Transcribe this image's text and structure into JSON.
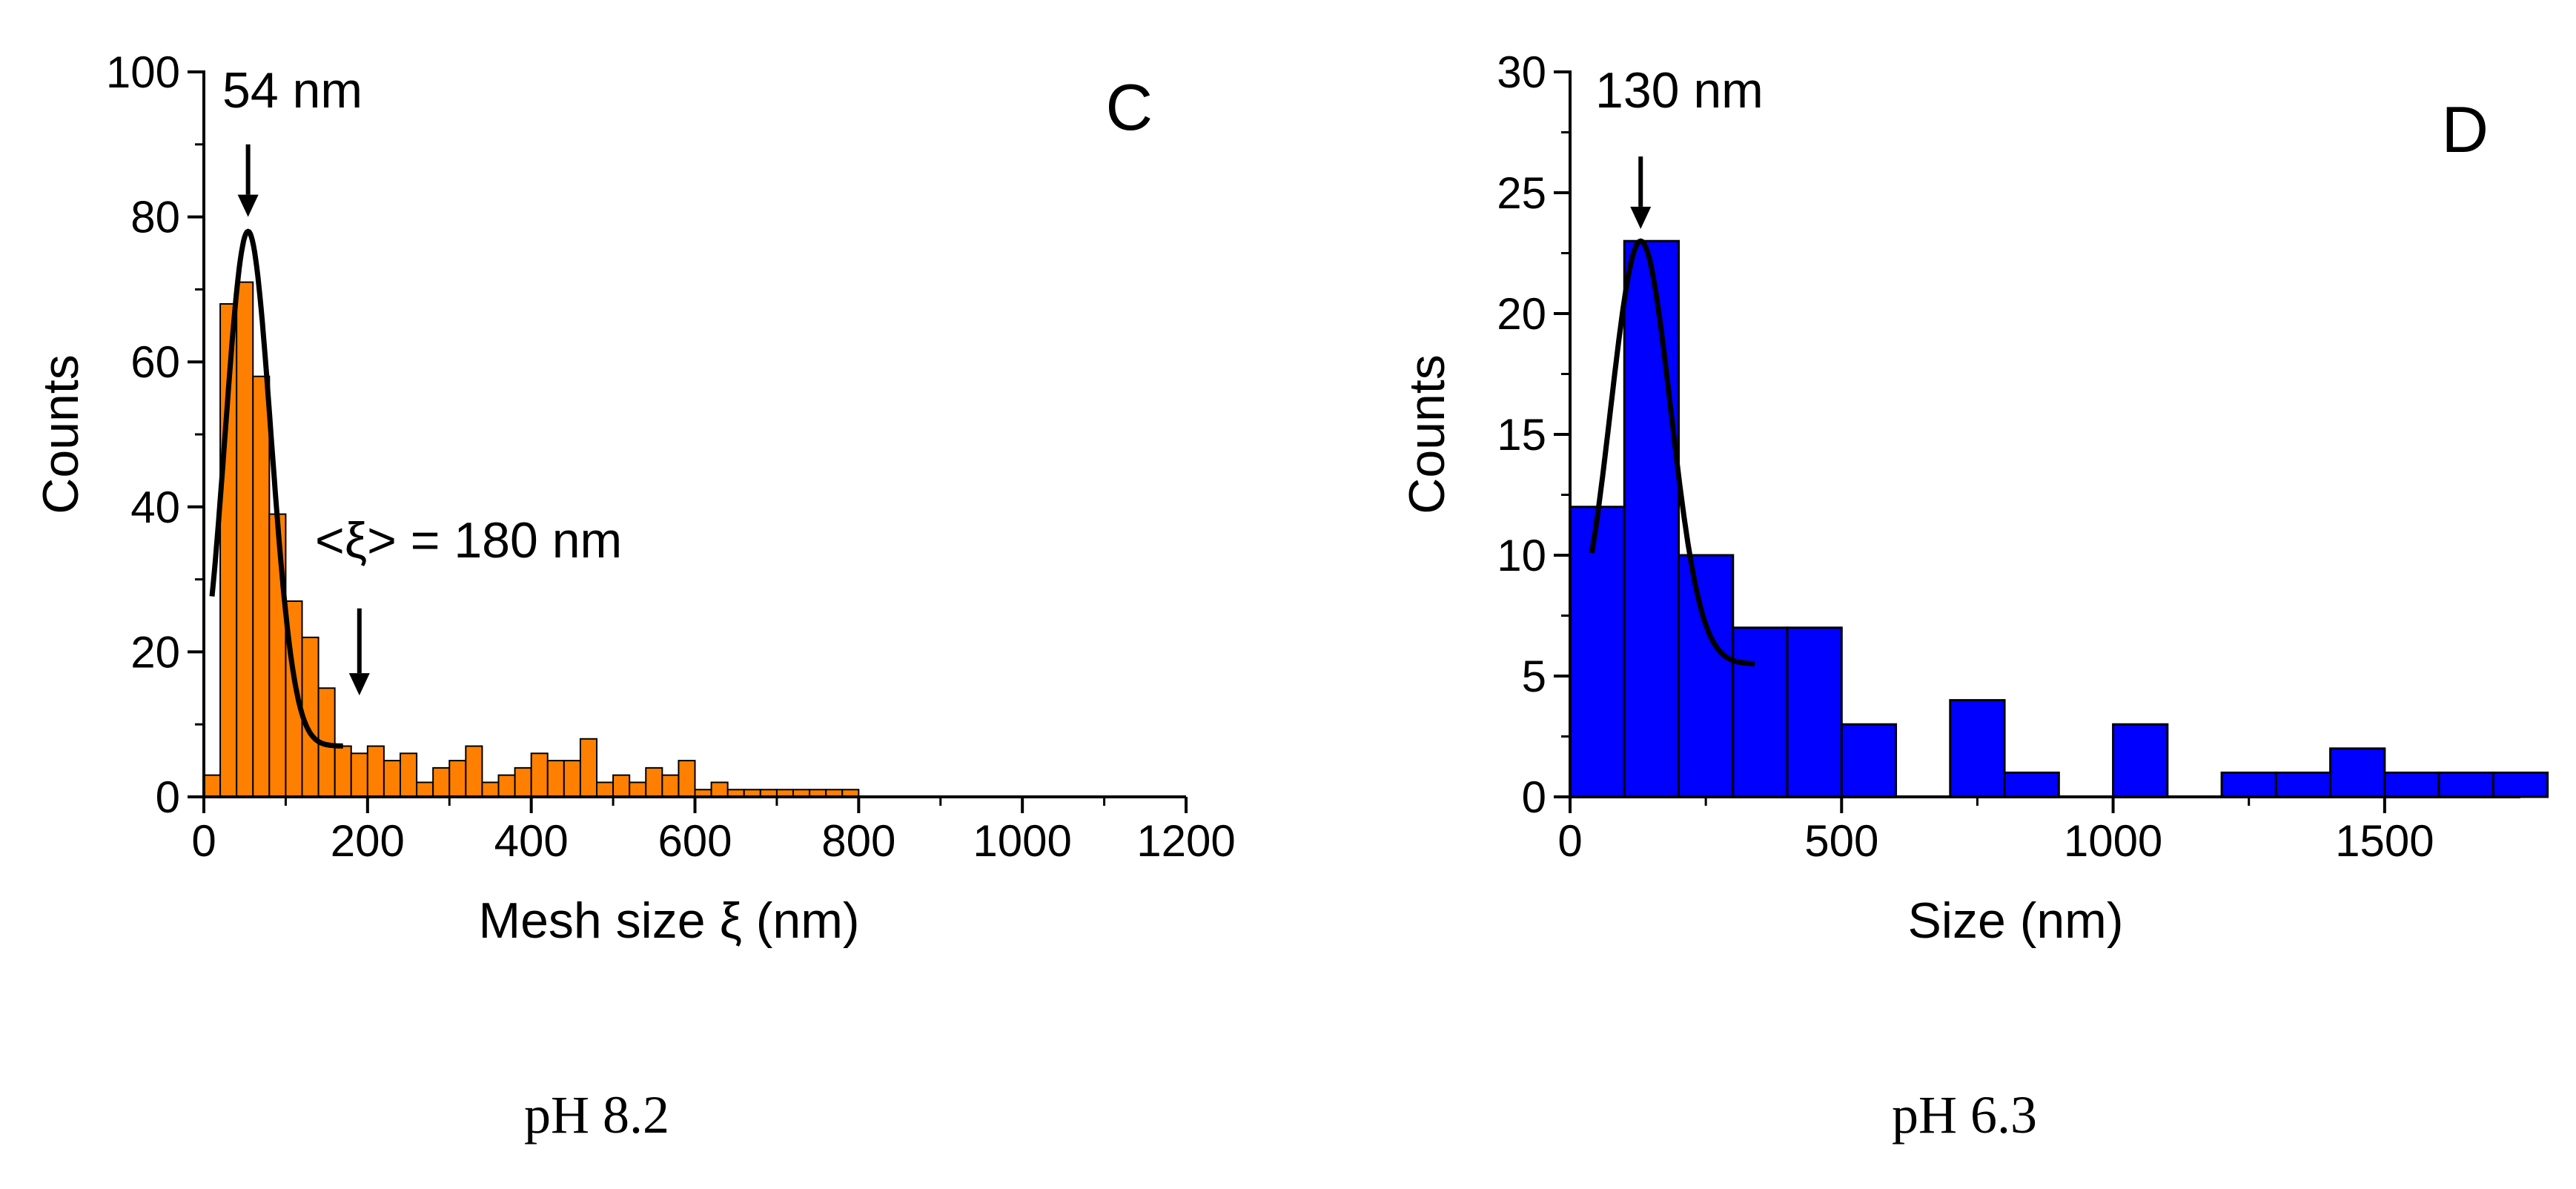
{
  "colors": {
    "orange_bar": "#ff8000",
    "blue_bar": "#0000ff",
    "edge": "#000000",
    "fit": "#000000",
    "background": "#ffffff"
  },
  "chart_data": [
    {
      "type": "bar",
      "panel_label": "C",
      "caption": "pH 8.2",
      "xlabel": "Mesh size ξ (nm)",
      "ylabel": "Counts",
      "xlim": [
        0,
        1200
      ],
      "ylim": [
        0,
        100
      ],
      "xticks": [
        "0",
        "200",
        "400",
        "600",
        "800",
        "1000",
        "1200"
      ],
      "yticks": [
        "0",
        "20",
        "40",
        "60",
        "80",
        "100"
      ],
      "bin_width": 20,
      "bins": [
        [
          0,
          3
        ],
        [
          20,
          68
        ],
        [
          40,
          71
        ],
        [
          60,
          58
        ],
        [
          80,
          39
        ],
        [
          100,
          27
        ],
        [
          120,
          22
        ],
        [
          140,
          15
        ],
        [
          160,
          7
        ],
        [
          180,
          6
        ],
        [
          200,
          7
        ],
        [
          220,
          5
        ],
        [
          240,
          6
        ],
        [
          260,
          2
        ],
        [
          280,
          4
        ],
        [
          300,
          5
        ],
        [
          320,
          7
        ],
        [
          340,
          2
        ],
        [
          360,
          3
        ],
        [
          380,
          4
        ],
        [
          400,
          6
        ],
        [
          420,
          5
        ],
        [
          440,
          5
        ],
        [
          460,
          8
        ],
        [
          480,
          2
        ],
        [
          500,
          3
        ],
        [
          520,
          2
        ],
        [
          540,
          4
        ],
        [
          560,
          3
        ],
        [
          580,
          5
        ],
        [
          600,
          1
        ],
        [
          620,
          2
        ],
        [
          640,
          1
        ],
        [
          660,
          1
        ],
        [
          680,
          1
        ],
        [
          700,
          1
        ],
        [
          720,
          1
        ],
        [
          740,
          1
        ],
        [
          760,
          1
        ],
        [
          780,
          1
        ]
      ],
      "fit": {
        "model": "gaussian",
        "center": 54,
        "sigma": 28,
        "amplitude": 71,
        "baseline": 7,
        "x_range": [
          10,
          170
        ]
      },
      "annotations": [
        {
          "text": "54 nm",
          "x": 54,
          "arrow_from_y": 90,
          "arrow_to_y": 80
        },
        {
          "text": "<ξ> = 180 nm",
          "x": 190,
          "arrow_from_y": 26,
          "arrow_to_y": 14
        }
      ]
    },
    {
      "type": "bar",
      "panel_label": "D",
      "caption": "pH 6.3",
      "xlabel": "Size (nm)",
      "ylabel": "Counts",
      "xlim": [
        0,
        1750
      ],
      "ylim": [
        0,
        30
      ],
      "xticks": [
        "0",
        "500",
        "1000",
        "1500"
      ],
      "yticks": [
        "0",
        "5",
        "10",
        "15",
        "20",
        "25",
        "30"
      ],
      "bin_width": 100,
      "bins": [
        [
          0,
          12
        ],
        [
          100,
          23
        ],
        [
          200,
          10
        ],
        [
          300,
          7
        ],
        [
          400,
          7
        ],
        [
          500,
          3
        ],
        [
          600,
          0
        ],
        [
          700,
          4
        ],
        [
          800,
          1
        ],
        [
          900,
          0
        ],
        [
          1000,
          3
        ],
        [
          1100,
          0
        ],
        [
          1200,
          1
        ],
        [
          1300,
          1
        ],
        [
          1400,
          2
        ],
        [
          1500,
          1
        ],
        [
          1600,
          1
        ],
        [
          1700,
          1
        ]
      ],
      "fit": {
        "model": "gaussian",
        "center": 130,
        "sigma": 55,
        "amplitude": 17.5,
        "baseline": 5.5,
        "x_range": [
          40,
          340
        ]
      },
      "annotations": [
        {
          "text": "130 nm",
          "x": 130,
          "arrow_from_y": 26.5,
          "arrow_to_y": 23.5
        }
      ]
    }
  ]
}
